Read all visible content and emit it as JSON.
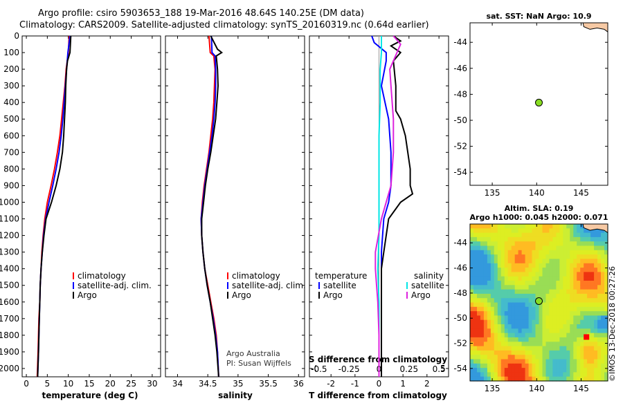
{
  "header": {
    "title_line1": "Argo profile: csiro 5903653_188 19-Mar-2016 48.64S 140.25E (DM data)",
    "title_line2": "Climatology: CARS2009. Satellite-adjusted climatology: synTS_20160319.nc (0.64d earlier)"
  },
  "credit": {
    "line1": "Argo Australia",
    "line2": "PI: Susan Wijffels"
  },
  "stamp": "©IMOS 13-Dec-2018 00:27:26",
  "colors": {
    "climatology": "#ff0000",
    "satellite": "#0000ff",
    "argo": "#000000",
    "sal_satellite": "#00e5e5",
    "sal_argo": "#dd22dd",
    "float": "#88dd22",
    "max": "#ff0000"
  },
  "chart_data": [
    {
      "type": "line",
      "id": "temperature",
      "xlabel": "temperature (deg C)",
      "ylabel": "",
      "xlim": [
        -1,
        32
      ],
      "ylim": [
        2050,
        0
      ],
      "xticks": [
        "0",
        "5",
        "10",
        "15",
        "20",
        "25",
        "30"
      ],
      "yticks": [
        "0",
        "100",
        "200",
        "300",
        "400",
        "500",
        "600",
        "700",
        "800",
        "900",
        "1000",
        "1100",
        "1200",
        "1300",
        "1400",
        "1500",
        "1600",
        "1700",
        "1800",
        "1900",
        "2000"
      ],
      "legend": [
        "climatology",
        "satellite-adj. clim.",
        "Argo"
      ],
      "series": [
        {
          "name": "climatology",
          "depth": [
            0,
            100,
            200,
            300,
            400,
            500,
            600,
            700,
            800,
            900,
            1000,
            1100,
            1200,
            1300,
            1400,
            1500,
            1600,
            1700,
            1800,
            1900,
            2050
          ],
          "values": [
            10.2,
            10.0,
            9.5,
            9.2,
            8.8,
            8.4,
            8.0,
            7.4,
            6.7,
            5.9,
            5.0,
            4.4,
            4.0,
            3.7,
            3.5,
            3.3,
            3.2,
            3.0,
            2.9,
            2.8,
            2.6
          ]
        },
        {
          "name": "satellite-adj. clim.",
          "depth": [
            0,
            100,
            200,
            300,
            400,
            500,
            600,
            700,
            800,
            900,
            1000,
            1100,
            1200,
            1300,
            1400,
            1500,
            1600,
            1700,
            1800,
            1900,
            2050
          ],
          "values": [
            10.4,
            9.9,
            9.6,
            9.3,
            9.0,
            8.7,
            8.3,
            7.8,
            7.1,
            6.3,
            5.4,
            4.6,
            4.1,
            3.8,
            3.5,
            3.3,
            3.2,
            3.1,
            3.0,
            2.9,
            2.7
          ]
        },
        {
          "name": "Argo",
          "depth": [
            0,
            100,
            150,
            200,
            300,
            400,
            500,
            600,
            700,
            800,
            900,
            1000,
            1100,
            1200,
            1300,
            1400,
            1500,
            1600,
            1700,
            1800,
            1900,
            2050
          ],
          "values": [
            10.6,
            10.4,
            9.8,
            9.6,
            9.4,
            9.3,
            9.1,
            8.9,
            8.6,
            8.0,
            7.1,
            6.0,
            4.7,
            4.2,
            3.8,
            3.5,
            3.3,
            3.2,
            3.1,
            3.0,
            2.9,
            2.7
          ]
        }
      ]
    },
    {
      "type": "line",
      "id": "salinity",
      "xlabel": "salinity",
      "ylabel": "",
      "xlim": [
        33.8,
        36.1
      ],
      "ylim": [
        2050,
        0
      ],
      "xticks": [
        "34",
        "34.5",
        "35",
        "35.5",
        "36"
      ],
      "legend": [
        "climatology",
        "satellite-adj. clim.",
        "Argo"
      ],
      "series": [
        {
          "name": "climatology",
          "depth": [
            0,
            100,
            120,
            200,
            300,
            400,
            500,
            600,
            700,
            800,
            900,
            1000,
            1100,
            1200,
            1300,
            1400,
            1500,
            1600,
            1700,
            1800,
            1900,
            2050
          ],
          "values": [
            34.52,
            34.54,
            34.6,
            34.62,
            34.61,
            34.6,
            34.58,
            34.55,
            34.52,
            34.48,
            34.44,
            34.41,
            34.39,
            34.4,
            34.42,
            34.45,
            34.5,
            34.55,
            34.6,
            34.64,
            34.66,
            34.68
          ]
        },
        {
          "name": "satellite-adj. clim.",
          "depth": [
            0,
            100,
            120,
            200,
            300,
            400,
            500,
            600,
            700,
            800,
            900,
            1000,
            1100,
            1200,
            1300,
            1400,
            1500,
            1600,
            1700,
            1800,
            1900,
            2050
          ],
          "values": [
            34.56,
            34.57,
            34.62,
            34.63,
            34.63,
            34.62,
            34.6,
            34.57,
            34.53,
            34.49,
            34.45,
            34.42,
            34.39,
            34.4,
            34.42,
            34.45,
            34.49,
            34.54,
            34.59,
            34.63,
            34.66,
            34.68
          ]
        },
        {
          "name": "Argo",
          "depth": [
            0,
            80,
            100,
            120,
            200,
            300,
            400,
            500,
            600,
            700,
            800,
            900,
            1000,
            1100,
            1200,
            1300,
            1400,
            1500,
            1600,
            1700,
            1800,
            1900,
            2050
          ],
          "values": [
            34.55,
            34.66,
            34.73,
            34.64,
            34.66,
            34.67,
            34.65,
            34.63,
            34.59,
            34.55,
            34.5,
            34.46,
            34.43,
            34.4,
            34.4,
            34.42,
            34.45,
            34.49,
            34.54,
            34.58,
            34.62,
            34.65,
            34.68
          ]
        }
      ]
    },
    {
      "type": "line",
      "id": "difference",
      "xlabel": "T difference from climatology",
      "xlabel2": "S difference from climatology",
      "xlim": [
        -2.9,
        2.9
      ],
      "ylim": [
        2050,
        0
      ],
      "xticks": [
        "-2",
        "-1",
        "0",
        "1",
        "2"
      ],
      "xticks2": [
        "-0.5",
        "-0.25",
        "0",
        "0.25",
        "0.5"
      ],
      "legend_temperature_title": "temperature",
      "legend_salinity_title": "salinity",
      "legend_temperature": [
        "satellite",
        "Argo"
      ],
      "legend_salinity": [
        "satellite",
        "Argo"
      ],
      "series": [
        {
          "name": "T satellite",
          "depth": [
            0,
            40,
            100,
            150,
            300,
            500,
            700,
            800,
            900,
            1000,
            1100,
            1300,
            1500,
            1700,
            2050
          ],
          "values": [
            -0.3,
            -0.2,
            0.3,
            0.3,
            0.1,
            0.4,
            0.5,
            0.5,
            0.5,
            0.4,
            0.2,
            0.1,
            0.1,
            0.1,
            0.1
          ]
        },
        {
          "name": "T Argo",
          "depth": [
            0,
            30,
            60,
            100,
            150,
            300,
            450,
            500,
            600,
            700,
            800,
            900,
            950,
            1000,
            1100,
            1200,
            1300,
            1400,
            1500,
            1700,
            2050
          ],
          "values": [
            0.6,
            0.9,
            0.5,
            0.9,
            0.6,
            0.7,
            0.7,
            0.9,
            1.1,
            1.2,
            1.3,
            1.3,
            1.4,
            0.9,
            0.4,
            0.3,
            0.2,
            0.1,
            0.1,
            0.1,
            0.1
          ]
        },
        {
          "name": "S satellite",
          "depth": [
            0,
            100,
            200,
            400,
            600,
            800,
            1000,
            1200,
            1400,
            1600,
            1800,
            2050
          ],
          "values": [
            0.02,
            0.02,
            0.01,
            0.01,
            0.0,
            0.0,
            0.0,
            0.0,
            -0.01,
            0.0,
            0.0,
            0.0
          ]
        },
        {
          "name": "S Argo",
          "depth": [
            0,
            50,
            100,
            200,
            300,
            500,
            700,
            900,
            1100,
            1300,
            1400,
            1500,
            1600,
            1800,
            2050
          ],
          "values": [
            0.12,
            0.18,
            0.15,
            0.09,
            0.1,
            0.12,
            0.12,
            0.1,
            0.02,
            -0.03,
            -0.03,
            -0.02,
            -0.01,
            0.0,
            0.0
          ]
        }
      ]
    },
    {
      "type": "scatter",
      "id": "sst-map",
      "title": "sat. SST: NaN Argo: 10.9",
      "xlim": [
        132.5,
        148
      ],
      "ylim": [
        -55,
        -42.5
      ],
      "xticks": [
        "135",
        "140",
        "145"
      ],
      "yticks": [
        "-44",
        "-46",
        "-48",
        "-50",
        "-52",
        "-54"
      ],
      "points": [
        {
          "name": "Argo float",
          "lon": 140.25,
          "lat": -48.64
        }
      ]
    },
    {
      "type": "heatmap",
      "id": "sla-map",
      "title_line1": "Altim. SLA: 0.19",
      "title_line2": "Argo h1000: 0.045 h2000: 0.071",
      "xlim": [
        132.5,
        148
      ],
      "ylim": [
        -55,
        -42.5
      ],
      "xticks": [
        "135",
        "140",
        "145"
      ],
      "yticks": [
        "-44",
        "-46",
        "-48",
        "-50",
        "-52",
        "-54"
      ],
      "points": [
        {
          "name": "Argo float",
          "lon": 140.25,
          "lat": -48.64
        },
        {
          "name": "max SLA",
          "lon": 145.6,
          "lat": -51.5
        }
      ]
    }
  ]
}
